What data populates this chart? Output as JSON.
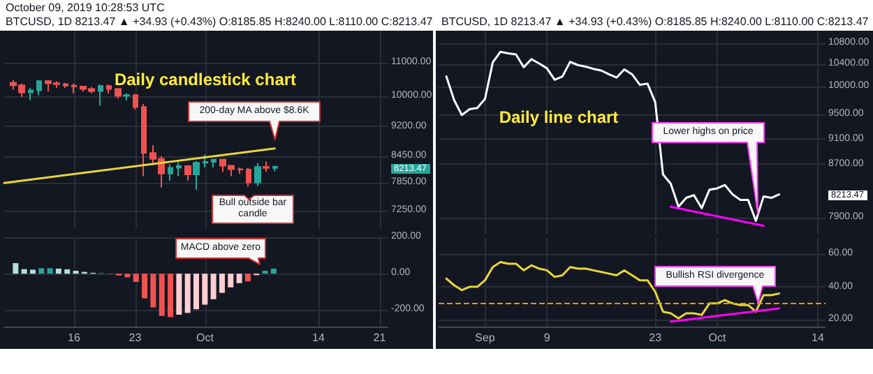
{
  "chart_data": [
    {
      "type": "candlestick",
      "title": "October 09, 2019 10:28:53 UTC",
      "subtitle": "BTCUSD, 1D 8213.47 ▲ +34.93 (+0.43%) O:8185.85 H:8240.00 L:8110.00 C:8213.47",
      "x": [
        "2019-09-09",
        "2019-09-10",
        "2019-09-11",
        "2019-09-12",
        "2019-09-13",
        "2019-09-14",
        "2019-09-15",
        "2019-09-16",
        "2019-09-17",
        "2019-09-18",
        "2019-09-19",
        "2019-09-20",
        "2019-09-21",
        "2019-09-22",
        "2019-09-23",
        "2019-09-24",
        "2019-09-25",
        "2019-09-26",
        "2019-09-27",
        "2019-09-28",
        "2019-09-29",
        "2019-09-30",
        "2019-10-01",
        "2019-10-02",
        "2019-10-03",
        "2019-10-04",
        "2019-10-05",
        "2019-10-06",
        "2019-10-07",
        "2019-10-08",
        "2019-10-09"
      ],
      "ohlc": [
        [
          10400,
          10480,
          10200,
          10330
        ],
        [
          10330,
          10380,
          10000,
          10120
        ],
        [
          10120,
          10250,
          9900,
          10180
        ],
        [
          10180,
          10480,
          10050,
          10450
        ],
        [
          10450,
          10480,
          10150,
          10390
        ],
        [
          10390,
          10450,
          10250,
          10360
        ],
        [
          10360,
          10400,
          10250,
          10320
        ],
        [
          10320,
          10380,
          10100,
          10290
        ],
        [
          10290,
          10300,
          10150,
          10220
        ],
        [
          10220,
          10280,
          10100,
          10160
        ],
        [
          10160,
          10350,
          9750,
          10310
        ],
        [
          10310,
          10350,
          10100,
          10220
        ],
        [
          10220,
          10250,
          9950,
          10030
        ],
        [
          10030,
          10100,
          9900,
          10050
        ],
        [
          10050,
          10080,
          9650,
          9720
        ],
        [
          9720,
          9800,
          8000,
          8540
        ],
        [
          8540,
          8730,
          8250,
          8400
        ],
        [
          8400,
          8460,
          7750,
          8060
        ],
        [
          8060,
          8270,
          7900,
          8190
        ],
        [
          8190,
          8320,
          8000,
          8230
        ],
        [
          8230,
          8250,
          7900,
          8040
        ],
        [
          8040,
          8350,
          7700,
          8310
        ],
        [
          8310,
          8500,
          8200,
          8330
        ],
        [
          8330,
          8400,
          8200,
          8380
        ],
        [
          8380,
          8400,
          8100,
          8240
        ],
        [
          8240,
          8250,
          8000,
          8160
        ],
        [
          8160,
          8200,
          8050,
          8150
        ],
        [
          8150,
          8190,
          7770,
          7860
        ],
        [
          7860,
          8300,
          7780,
          8210
        ],
        [
          8210,
          8340,
          8100,
          8185.85
        ],
        [
          8185.85,
          8240,
          8110,
          8213.47
        ]
      ],
      "series": [
        {
          "type": "line",
          "x": [
            "2019-09-08",
            "2019-10-09"
          ],
          "values": [
            7850,
            8650
          ],
          "color": "#e8d53a"
        }
      ],
      "xlim": [
        "2019-09-08",
        "2019-10-22"
      ],
      "xticks": [
        {
          "value": "2019-09-16",
          "label": null
        },
        {
          "value": "2019-09-23",
          "label": null
        },
        {
          "value": "2019-10-01",
          "label": null
        },
        {
          "value": "2019-10-14",
          "label": null
        },
        {
          "value": "2019-10-21",
          "label": null
        }
      ],
      "ylim": [
        6900,
        12040
      ],
      "yticks": [
        {
          "value": 7250,
          "label": "7250.00"
        },
        {
          "value": 7850,
          "label": "7850.00"
        },
        {
          "value": 8450,
          "label": "8450.00"
        },
        {
          "value": 9200,
          "label": "9200.00"
        },
        {
          "value": 10000,
          "label": "10000.00"
        },
        {
          "value": 11000,
          "label": "11000.00"
        }
      ],
      "log": true,
      "grid": true,
      "tick_labels": "y",
      "annotations": [
        "Daily candlestick chart",
        "200-day MA above $8.6K",
        "Bull outside bar candle",
        "8213.47"
      ]
    },
    {
      "type": "bar",
      "x": [
        "2019-09-09",
        "2019-09-10",
        "2019-09-11",
        "2019-09-12",
        "2019-09-13",
        "2019-09-14",
        "2019-09-15",
        "2019-09-16",
        "2019-09-17",
        "2019-09-18",
        "2019-09-19",
        "2019-09-20",
        "2019-09-21",
        "2019-09-22",
        "2019-09-23",
        "2019-09-24",
        "2019-09-25",
        "2019-09-26",
        "2019-09-27",
        "2019-09-28",
        "2019-09-29",
        "2019-09-30",
        "2019-10-01",
        "2019-10-02",
        "2019-10-03",
        "2019-10-04",
        "2019-10-05",
        "2019-10-06",
        "2019-10-07",
        "2019-10-08",
        "2019-10-09"
      ],
      "values": [
        58,
        25,
        22,
        30,
        30,
        28,
        24,
        16,
        10,
        5,
        3,
        -2,
        -10,
        -20,
        -45,
        -135,
        -185,
        -232,
        -238,
        -225,
        -215,
        -195,
        -170,
        -140,
        -105,
        -75,
        -52,
        -42,
        -8,
        16,
        28
      ],
      "colors": [
        "#b2dfdb",
        "#b2dfdb",
        "#b2dfdb",
        "#26a69a",
        "#26a69a",
        "#b2dfdb",
        "#b2dfdb",
        "#b2dfdb",
        "#b2dfdb",
        "#b2dfdb",
        "#26a69a",
        "#ef5350",
        "#ef5350",
        "#ef5350",
        "#ef5350",
        "#ef5350",
        "#ef5350",
        "#ef5350",
        "#ef5350",
        "#ffcdd2",
        "#ffcdd2",
        "#ffcdd2",
        "#ffcdd2",
        "#ffcdd2",
        "#ffcdd2",
        "#ffcdd2",
        "#ffcdd2",
        "#ef5350",
        "#ffcdd2",
        "#26a69a",
        "#26a69a"
      ],
      "xlim": [
        "2019-09-08",
        "2019-10-22"
      ],
      "xticks": [
        {
          "value": "2019-09-16",
          "label": "16"
        },
        {
          "value": "2019-09-23",
          "label": "23"
        },
        {
          "value": "2019-10-01",
          "label": "Oct"
        },
        {
          "value": "2019-10-14",
          "label": "14"
        },
        {
          "value": "2019-10-21",
          "label": "21"
        }
      ],
      "ylim": [
        -290,
        200
      ],
      "yticks": [
        {
          "value": -200,
          "label": "-200.00"
        },
        {
          "value": 0,
          "label": "0.00"
        },
        {
          "value": 200,
          "label": "200.00"
        }
      ],
      "grid": true,
      "annotations": [
        {
          "text": "MACD above zero",
          "x": "2019-10-08",
          "y": 16
        }
      ]
    },
    {
      "type": "line",
      "title": "BTCUSD, 1D 8213.47 ▲ +34.93 (+0.43%) O:8185.85 H:8240.00 L:8110.00 C:8213.47",
      "color": "#ffffff",
      "x": [
        "2019-08-27",
        "2019-08-28",
        "2019-08-29",
        "2019-08-30",
        "2019-08-31",
        "2019-09-01",
        "2019-09-02",
        "2019-09-03",
        "2019-09-04",
        "2019-09-05",
        "2019-09-06",
        "2019-09-07",
        "2019-09-08",
        "2019-09-09",
        "2019-09-10",
        "2019-09-11",
        "2019-09-12",
        "2019-09-13",
        "2019-09-14",
        "2019-09-15",
        "2019-09-16",
        "2019-09-17",
        "2019-09-18",
        "2019-09-19",
        "2019-09-20",
        "2019-09-21",
        "2019-09-22",
        "2019-09-23",
        "2019-09-24",
        "2019-09-25",
        "2019-09-26",
        "2019-09-27",
        "2019-09-28",
        "2019-09-29",
        "2019-09-30",
        "2019-10-01",
        "2019-10-02",
        "2019-10-03",
        "2019-10-04",
        "2019-10-05",
        "2019-10-06",
        "2019-10-07",
        "2019-10-08",
        "2019-10-09"
      ],
      "values": [
        10180,
        9760,
        9500,
        9600,
        9620,
        9780,
        10440,
        10640,
        10610,
        10590,
        10350,
        10500,
        10420,
        10330,
        10120,
        10180,
        10450,
        10390,
        10360,
        10320,
        10290,
        10220,
        10160,
        10310,
        10220,
        10030,
        10050,
        9720,
        8540,
        8400,
        8060,
        8190,
        8230,
        8040,
        8310,
        8330,
        8380,
        8240,
        8160,
        8160,
        7860,
        8210,
        8190,
        8240
      ],
      "series": [
        {
          "type": "line",
          "x": [
            "2019-09-25",
            "2019-10-07"
          ],
          "values": [
            8060,
            7790
          ],
          "color": "#ff00ff"
        }
      ],
      "xlim": [
        "2019-08-26",
        "2019-10-15"
      ],
      "xticks": [
        {
          "value": "2019-09-01",
          "label": null
        },
        {
          "value": "2019-09-09",
          "label": null
        },
        {
          "value": "2019-09-23",
          "label": null
        },
        {
          "value": "2019-10-01",
          "label": null
        },
        {
          "value": "2019-10-14",
          "label": null
        }
      ],
      "ylim": [
        7670,
        11050
      ],
      "yticks": [
        {
          "value": 7900,
          "label": "7900.00"
        },
        {
          "value": 8700,
          "label": "8700.00"
        },
        {
          "value": 9100,
          "label": "9100.00"
        },
        {
          "value": 9500,
          "label": "9500.00"
        },
        {
          "value": 10000,
          "label": "10000.00"
        },
        {
          "value": 10400,
          "label": "10400.00"
        },
        {
          "value": 10800,
          "label": "10800.00"
        }
      ],
      "log": true,
      "grid": true,
      "tick_labels": "y",
      "annotations": [
        "Daily line chart",
        "Lower highs on price",
        "8213.47"
      ]
    },
    {
      "type": "line",
      "color": "#e8d53a",
      "x": [
        "2019-08-27",
        "2019-08-28",
        "2019-08-29",
        "2019-08-30",
        "2019-08-31",
        "2019-09-01",
        "2019-09-02",
        "2019-09-03",
        "2019-09-04",
        "2019-09-05",
        "2019-09-06",
        "2019-09-07",
        "2019-09-08",
        "2019-09-09",
        "2019-09-10",
        "2019-09-11",
        "2019-09-12",
        "2019-09-13",
        "2019-09-14",
        "2019-09-15",
        "2019-09-16",
        "2019-09-17",
        "2019-09-18",
        "2019-09-19",
        "2019-09-20",
        "2019-09-21",
        "2019-09-22",
        "2019-09-23",
        "2019-09-24",
        "2019-09-25",
        "2019-09-26",
        "2019-09-27",
        "2019-09-28",
        "2019-09-29",
        "2019-09-30",
        "2019-10-01",
        "2019-10-02",
        "2019-10-03",
        "2019-10-04",
        "2019-10-05",
        "2019-10-06",
        "2019-10-07",
        "2019-10-08",
        "2019-10-09"
      ],
      "values": [
        45,
        41,
        38,
        40,
        40,
        44,
        52,
        55,
        54,
        54,
        50,
        53,
        51,
        50,
        46,
        47,
        52,
        51,
        51,
        50,
        49,
        48,
        47,
        50,
        47,
        44,
        44,
        37,
        25,
        24,
        21,
        24,
        24,
        23,
        30,
        30,
        32,
        30,
        29,
        29,
        25,
        35,
        35,
        36
      ],
      "series": [
        {
          "type": "line",
          "x": [
            "2019-09-25",
            "2019-10-09"
          ],
          "values": [
            19,
            27
          ],
          "color": "#ff00ff"
        }
      ],
      "xlim": [
        "2019-08-26",
        "2019-10-15"
      ],
      "xticks": [
        {
          "value": "2019-09-01",
          "label": "Sep"
        },
        {
          "value": "2019-09-09",
          "label": "9"
        },
        {
          "value": "2019-09-23",
          "label": "23"
        },
        {
          "value": "2019-10-01",
          "label": "Oct"
        },
        {
          "value": "2019-10-14",
          "label": "14"
        }
      ],
      "ylim": [
        16,
        70
      ],
      "yticks": [
        {
          "value": 20,
          "label": "20.00"
        },
        {
          "value": 40,
          "label": "40.00"
        },
        {
          "value": 60,
          "label": "60.00"
        }
      ],
      "grid": true,
      "ref_lines": [
        {
          "axis": "y",
          "value": 30,
          "color": "#ff9800",
          "line_style": "dashed"
        }
      ],
      "annotations": [
        "Bullish RSI divergence"
      ]
    }
  ]
}
